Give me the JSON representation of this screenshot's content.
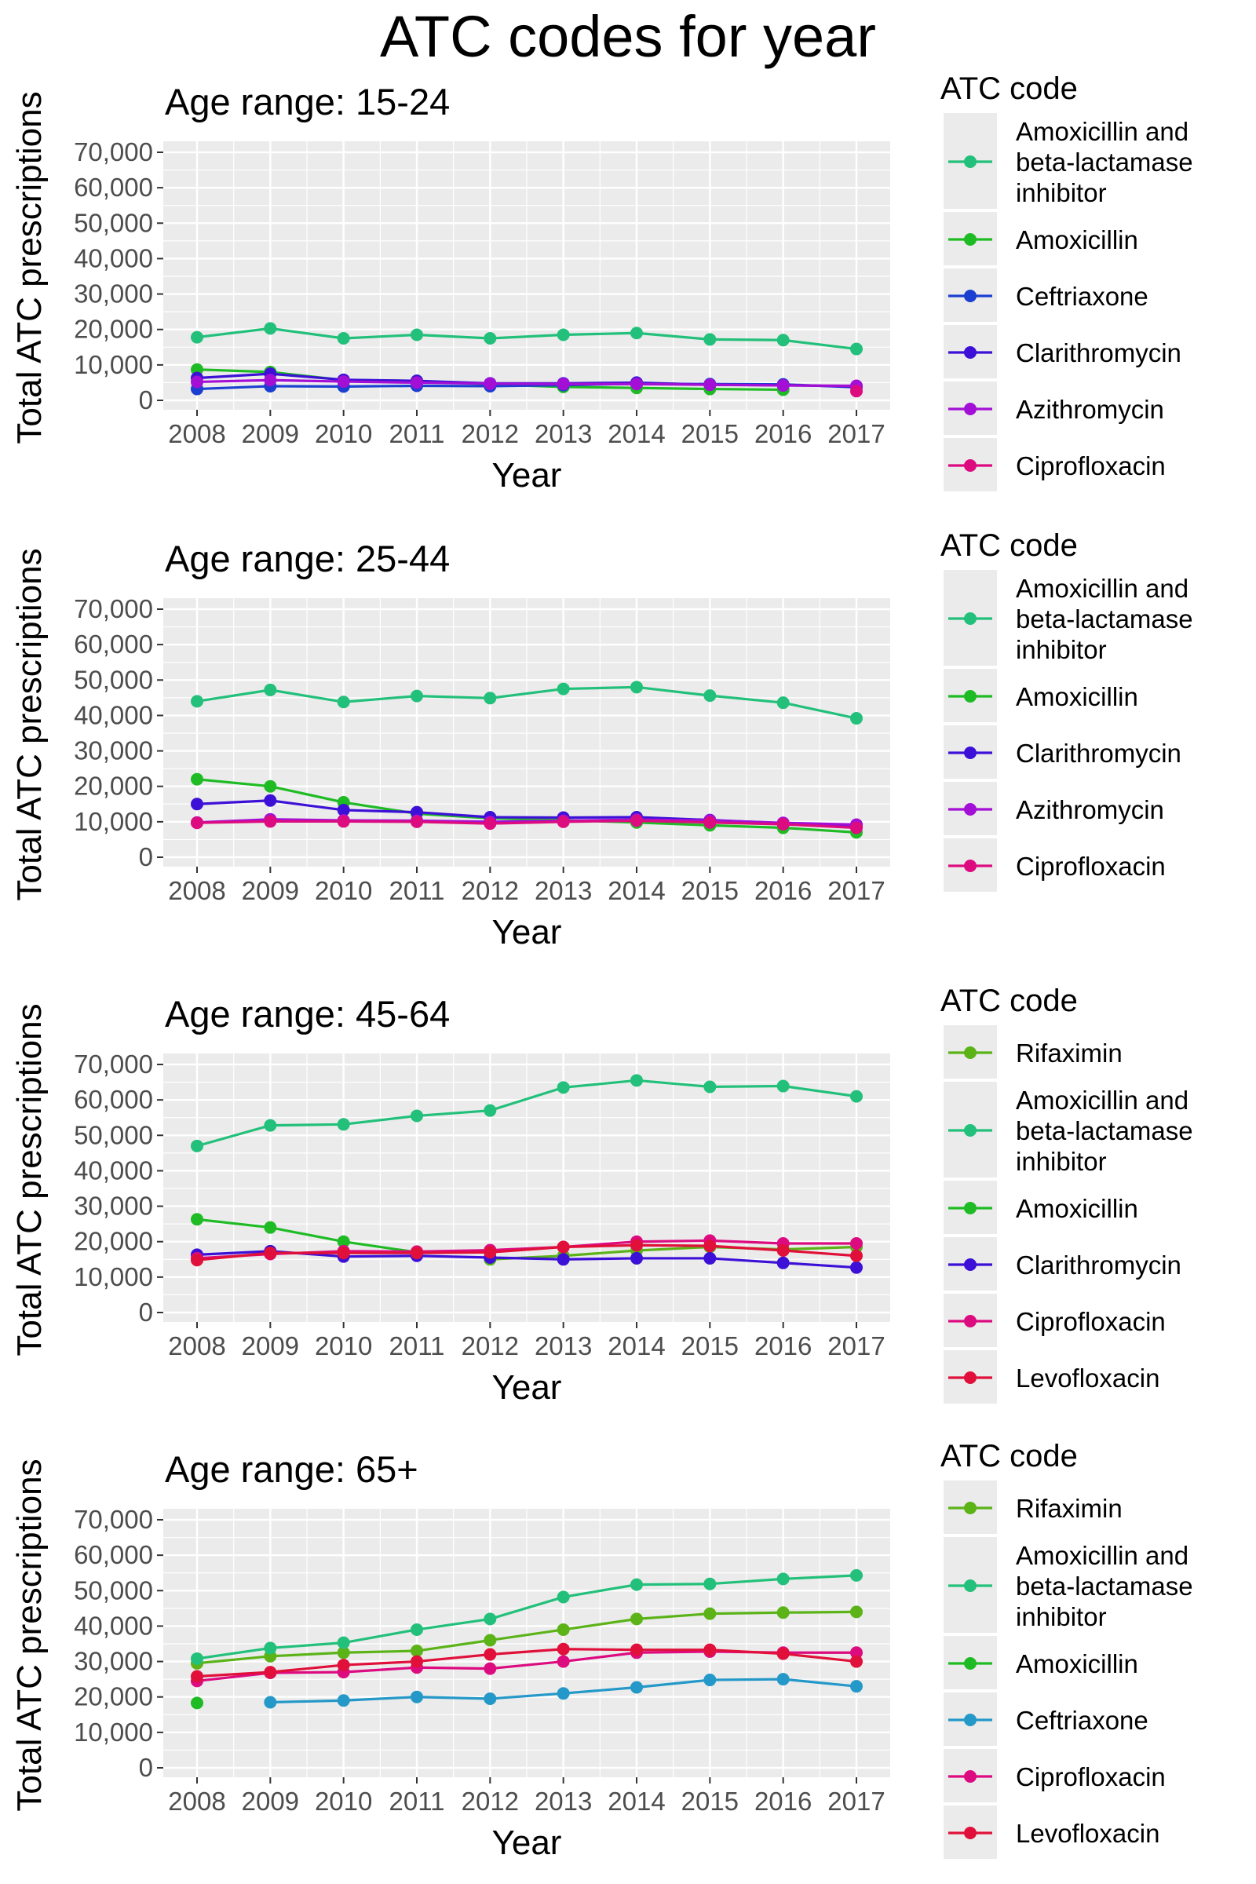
{
  "title": "ATC codes for year",
  "colors": {
    "Rifaximin": "#5bb318",
    "Amoxicillin": "#1fbb25",
    "Amoxicillin and beta-lactamase inhibitor": "#22c07a",
    "Ceftriaxone": "#1a3fd1",
    "Ceftriaxone_65": "#2498c8",
    "Clarithromycin": "#3c10d6",
    "Azithromycin": "#a40fd6",
    "Ciprofloxacin": "#dd0b80",
    "Levofloxacin": "#e0103a"
  },
  "chart_data": [
    {
      "type": "line",
      "title": "Age range: 15-24",
      "xlabel": "Year",
      "ylabel": "Total ATC prescriptions",
      "ylim": [
        0,
        70000
      ],
      "yticks": [
        0,
        10000,
        20000,
        30000,
        40000,
        50000,
        60000,
        70000
      ],
      "ytick_labels": [
        "0",
        "10,000",
        "20,000",
        "30,000",
        "40,000",
        "50,000",
        "60,000",
        "70,000"
      ],
      "x": [
        2008,
        2009,
        2010,
        2011,
        2012,
        2013,
        2014,
        2015,
        2016,
        2017
      ],
      "grid": true,
      "legend_title": "ATC code",
      "legend_position": "right",
      "series": [
        {
          "name": "Amoxicillin and beta-lactamase inhibitor",
          "legend_lines": [
            "Amoxicillin and",
            "beta-lactamase",
            "inhibitor"
          ],
          "color_key": "Amoxicillin and beta-lactamase inhibitor",
          "values": [
            17800,
            20300,
            17500,
            18500,
            17500,
            18500,
            19000,
            17200,
            17000,
            14500
          ]
        },
        {
          "name": "Amoxicillin",
          "legend_lines": [
            "Amoxicillin"
          ],
          "color_key": "Amoxicillin",
          "values": [
            8700,
            8000,
            5700,
            5500,
            4500,
            3800,
            3500,
            3200,
            3000,
            null
          ]
        },
        {
          "name": "Ceftriaxone",
          "legend_lines": [
            "Ceftriaxone"
          ],
          "color_key": "Ceftriaxone",
          "values": [
            3200,
            4000,
            3900,
            4100,
            4000,
            4300,
            4700,
            4600,
            4500,
            3700
          ]
        },
        {
          "name": "Clarithromycin",
          "legend_lines": [
            "Clarithromycin"
          ],
          "color_key": "Clarithromycin",
          "values": [
            6300,
            7500,
            5800,
            5500,
            4800,
            4800,
            5000,
            4400,
            4300,
            3900
          ]
        },
        {
          "name": "Azithromycin",
          "legend_lines": [
            "Azithromycin"
          ],
          "color_key": "Azithromycin",
          "values": [
            5200,
            5700,
            5300,
            5000,
            4700,
            4600,
            4600,
            4400,
            4200,
            4100
          ]
        },
        {
          "name": "Ciprofloxacin",
          "legend_lines": [
            "Ciprofloxacin"
          ],
          "color_key": "Ciprofloxacin",
          "values": [
            null,
            null,
            null,
            null,
            null,
            null,
            null,
            null,
            null,
            2600
          ]
        }
      ]
    },
    {
      "type": "line",
      "title": "Age range: 25-44",
      "xlabel": "Year",
      "ylabel": "Total ATC prescriptions",
      "ylim": [
        0,
        70000
      ],
      "yticks": [
        0,
        10000,
        20000,
        30000,
        40000,
        50000,
        60000,
        70000
      ],
      "ytick_labels": [
        "0",
        "10,000",
        "20,000",
        "30,000",
        "40,000",
        "50,000",
        "60,000",
        "70,000"
      ],
      "x": [
        2008,
        2009,
        2010,
        2011,
        2012,
        2013,
        2014,
        2015,
        2016,
        2017
      ],
      "grid": true,
      "legend_title": "ATC code",
      "legend_position": "right",
      "series": [
        {
          "name": "Amoxicillin and beta-lactamase inhibitor",
          "legend_lines": [
            "Amoxicillin and",
            "beta-lactamase",
            "inhibitor"
          ],
          "color_key": "Amoxicillin and beta-lactamase inhibitor",
          "values": [
            44000,
            47200,
            43800,
            45500,
            44900,
            47500,
            48000,
            45600,
            43600,
            39200
          ]
        },
        {
          "name": "Amoxicillin",
          "legend_lines": [
            "Amoxicillin"
          ],
          "color_key": "Amoxicillin",
          "values": [
            22000,
            20000,
            15500,
            12300,
            11000,
            10500,
            9800,
            9000,
            8300,
            7000
          ]
        },
        {
          "name": "Clarithromycin",
          "legend_lines": [
            "Clarithromycin"
          ],
          "color_key": "Clarithromycin",
          "values": [
            15000,
            16000,
            13300,
            12700,
            11300,
            11200,
            11300,
            10500,
            9600,
            8800
          ]
        },
        {
          "name": "Azithromycin",
          "legend_lines": [
            "Azithromycin"
          ],
          "color_key": "Azithromycin",
          "values": [
            9800,
            10700,
            10400,
            10300,
            10000,
            10300,
            10600,
            10400,
            9700,
            9200
          ]
        },
        {
          "name": "Ciprofloxacin",
          "legend_lines": [
            "Ciprofloxacin"
          ],
          "color_key": "Ciprofloxacin",
          "values": [
            9700,
            10100,
            10100,
            10000,
            9500,
            10000,
            10300,
            9800,
            9300,
            8300
          ]
        }
      ]
    },
    {
      "type": "line",
      "title": "Age range: 45-64",
      "xlabel": "Year",
      "ylabel": "Total ATC prescriptions",
      "ylim": [
        0,
        70000
      ],
      "yticks": [
        0,
        10000,
        20000,
        30000,
        40000,
        50000,
        60000,
        70000
      ],
      "ytick_labels": [
        "0",
        "10,000",
        "20,000",
        "30,000",
        "40,000",
        "50,000",
        "60,000",
        "70,000"
      ],
      "x": [
        2008,
        2009,
        2010,
        2011,
        2012,
        2013,
        2014,
        2015,
        2016,
        2017
      ],
      "grid": true,
      "legend_title": "ATC code",
      "legend_position": "right",
      "series": [
        {
          "name": "Rifaximin",
          "legend_lines": [
            "Rifaximin"
          ],
          "color_key": "Rifaximin",
          "values": [
            null,
            null,
            null,
            null,
            15000,
            16000,
            17500,
            18500,
            17800,
            18500
          ]
        },
        {
          "name": "Amoxicillin and beta-lactamase inhibitor",
          "legend_lines": [
            "Amoxicillin and",
            "beta-lactamase",
            "inhibitor"
          ],
          "color_key": "Amoxicillin and beta-lactamase inhibitor",
          "values": [
            47000,
            52800,
            53100,
            55500,
            57000,
            63500,
            65500,
            63700,
            63900,
            61000
          ]
        },
        {
          "name": "Amoxicillin",
          "legend_lines": [
            "Amoxicillin"
          ],
          "color_key": "Amoxicillin",
          "values": [
            26300,
            24000,
            20000,
            17000,
            null,
            null,
            null,
            null,
            null,
            null
          ]
        },
        {
          "name": "Clarithromycin",
          "legend_lines": [
            "Clarithromycin"
          ],
          "color_key": "Clarithromycin",
          "values": [
            16300,
            17300,
            15800,
            16000,
            15500,
            15000,
            15300,
            15300,
            14000,
            12700
          ]
        },
        {
          "name": "Ciprofloxacin",
          "legend_lines": [
            "Ciprofloxacin"
          ],
          "color_key": "Ciprofloxacin",
          "values": [
            15300,
            16500,
            17300,
            17200,
            17600,
            18500,
            20000,
            20300,
            19500,
            19500
          ]
        },
        {
          "name": "Levofloxacin",
          "legend_lines": [
            "Levofloxacin"
          ],
          "color_key": "Levofloxacin",
          "values": [
            14800,
            16800,
            16800,
            16800,
            17000,
            18500,
            19000,
            18800,
            17500,
            16000
          ]
        }
      ]
    },
    {
      "type": "line",
      "title": "Age range: 65+",
      "xlabel": "Year",
      "ylabel": "Total ATC prescriptions",
      "ylim": [
        0,
        70000
      ],
      "yticks": [
        0,
        10000,
        20000,
        30000,
        40000,
        50000,
        60000,
        70000
      ],
      "ytick_labels": [
        "0",
        "10,000",
        "20,000",
        "30,000",
        "40,000",
        "50,000",
        "60,000",
        "70,000"
      ],
      "x": [
        2008,
        2009,
        2010,
        2011,
        2012,
        2013,
        2014,
        2015,
        2016,
        2017
      ],
      "grid": true,
      "legend_title": "ATC code",
      "legend_position": "right",
      "series": [
        {
          "name": "Rifaximin",
          "legend_lines": [
            "Rifaximin"
          ],
          "color_key": "Rifaximin",
          "values": [
            29500,
            31500,
            32500,
            33000,
            36000,
            39000,
            42000,
            43500,
            43800,
            44000
          ]
        },
        {
          "name": "Amoxicillin and beta-lactamase inhibitor",
          "legend_lines": [
            "Amoxicillin and",
            "beta-lactamase",
            "inhibitor"
          ],
          "color_key": "Amoxicillin and beta-lactamase inhibitor",
          "values": [
            30800,
            33800,
            35300,
            39000,
            42000,
            48200,
            51700,
            51900,
            53300,
            54300
          ]
        },
        {
          "name": "Amoxicillin",
          "legend_lines": [
            "Amoxicillin"
          ],
          "color_key": "Amoxicillin",
          "values": [
            18300,
            null,
            null,
            null,
            null,
            null,
            null,
            null,
            null,
            null
          ]
        },
        {
          "name": "Ceftriaxone",
          "legend_lines": [
            "Ceftriaxone"
          ],
          "color_key": "Ceftriaxone_65",
          "values": [
            null,
            18500,
            19000,
            20000,
            19500,
            21000,
            22700,
            24800,
            25000,
            23000
          ]
        },
        {
          "name": "Ciprofloxacin",
          "legend_lines": [
            "Ciprofloxacin"
          ],
          "color_key": "Ciprofloxacin",
          "values": [
            24500,
            26800,
            27000,
            28300,
            28000,
            30000,
            32500,
            32800,
            32500,
            32500
          ]
        },
        {
          "name": "Levofloxacin",
          "legend_lines": [
            "Levofloxacin"
          ],
          "color_key": "Levofloxacin",
          "values": [
            25800,
            27000,
            29000,
            30000,
            32000,
            33500,
            33300,
            33300,
            32200,
            30000
          ]
        }
      ]
    }
  ]
}
